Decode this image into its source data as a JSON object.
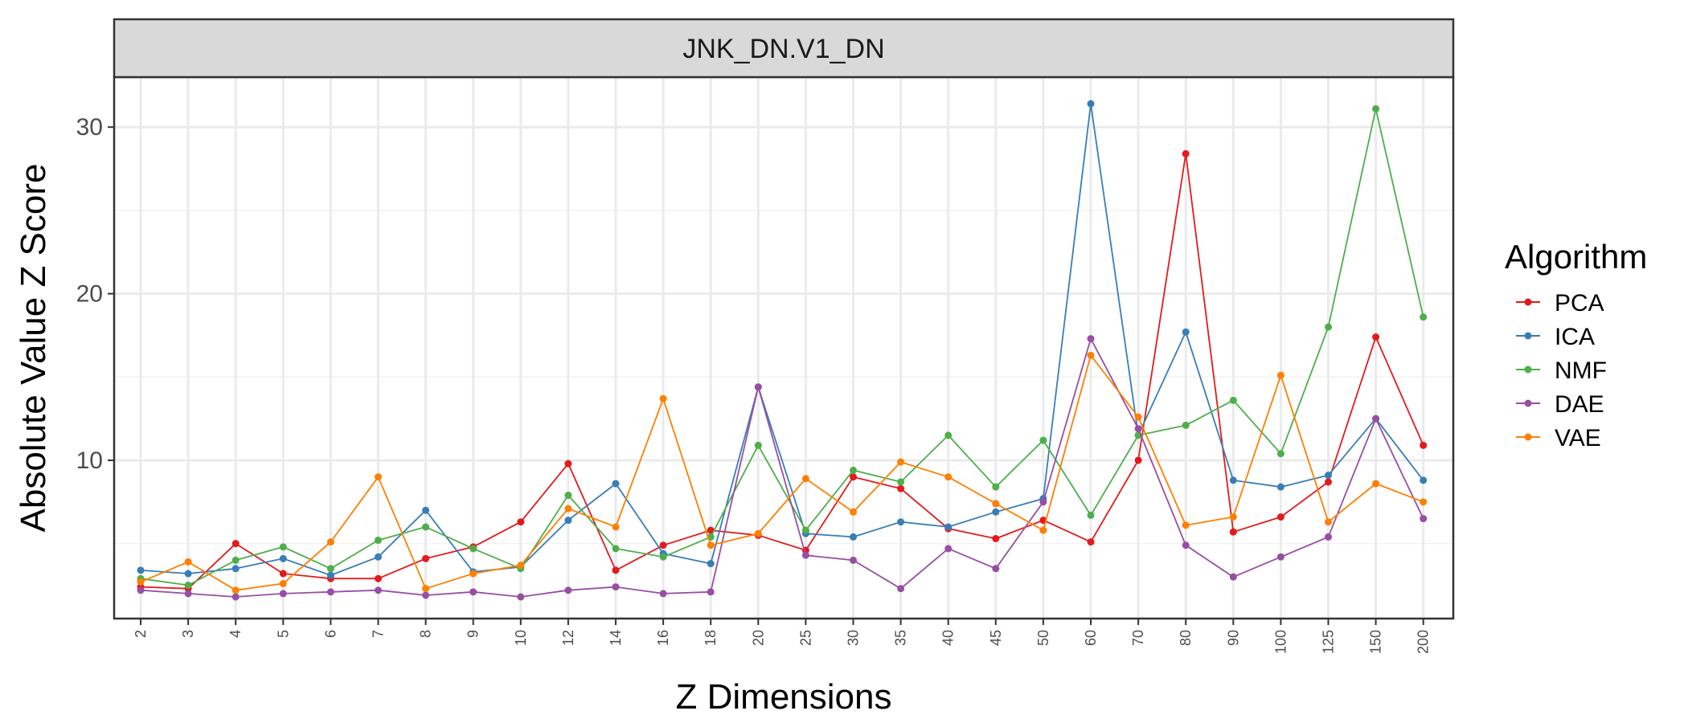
{
  "chart_data": {
    "type": "line",
    "facet_label": "JNK_DN.V1_DN",
    "xlabel": "Z Dimensions",
    "ylabel": "Absolute Value Z Score",
    "categories": [
      "2",
      "3",
      "4",
      "5",
      "6",
      "7",
      "8",
      "9",
      "10",
      "12",
      "14",
      "16",
      "18",
      "20",
      "25",
      "30",
      "35",
      "40",
      "45",
      "50",
      "60",
      "70",
      "80",
      "90",
      "100",
      "125",
      "150",
      "200"
    ],
    "yticks": [
      10,
      20,
      30
    ],
    "ylim": [
      0.5,
      33
    ],
    "grid": true,
    "legend": {
      "title": "Algorithm",
      "position": "right"
    },
    "series": [
      {
        "name": "PCA",
        "color": "#e41a1c",
        "values": [
          2.4,
          2.3,
          5.0,
          3.2,
          2.9,
          2.9,
          4.1,
          4.8,
          6.3,
          9.8,
          3.4,
          4.9,
          5.8,
          5.5,
          4.6,
          9.0,
          8.3,
          5.9,
          5.3,
          6.4,
          5.1,
          10.0,
          28.4,
          5.7,
          6.6,
          8.7,
          17.4,
          10.9
        ]
      },
      {
        "name": "ICA",
        "color": "#377eb8",
        "values": [
          3.4,
          3.2,
          3.5,
          4.1,
          3.1,
          4.2,
          7.0,
          3.3,
          3.6,
          6.4,
          8.6,
          4.4,
          3.8,
          14.4,
          5.6,
          5.4,
          6.3,
          6.0,
          6.9,
          7.7,
          31.4,
          11.5,
          17.7,
          8.8,
          8.4,
          9.1,
          12.5,
          8.8
        ]
      },
      {
        "name": "NMF",
        "color": "#4daf4a",
        "values": [
          2.9,
          2.5,
          4.0,
          4.8,
          3.5,
          5.2,
          6.0,
          4.7,
          3.5,
          7.9,
          4.7,
          4.2,
          5.4,
          10.9,
          5.8,
          9.4,
          8.7,
          11.5,
          8.4,
          11.2,
          6.7,
          11.5,
          12.1,
          13.6,
          10.4,
          18.0,
          31.1,
          18.6
        ]
      },
      {
        "name": "DAE",
        "color": "#984ea3",
        "values": [
          2.2,
          2.0,
          1.8,
          2.0,
          2.1,
          2.2,
          1.9,
          2.1,
          1.8,
          2.2,
          2.4,
          2.0,
          2.1,
          14.4,
          4.3,
          4.0,
          2.3,
          4.7,
          3.5,
          7.5,
          17.3,
          11.9,
          4.9,
          3.0,
          4.2,
          5.4,
          12.5,
          6.5
        ]
      },
      {
        "name": "VAE",
        "color": "#ff7f00",
        "values": [
          2.7,
          3.9,
          2.2,
          2.6,
          5.1,
          9.0,
          2.3,
          3.2,
          3.7,
          7.1,
          6.0,
          13.7,
          4.9,
          5.6,
          8.9,
          6.9,
          9.9,
          9.0,
          7.4,
          5.8,
          16.3,
          12.6,
          6.1,
          6.6,
          15.1,
          6.3,
          8.6,
          7.5
        ]
      }
    ]
  }
}
